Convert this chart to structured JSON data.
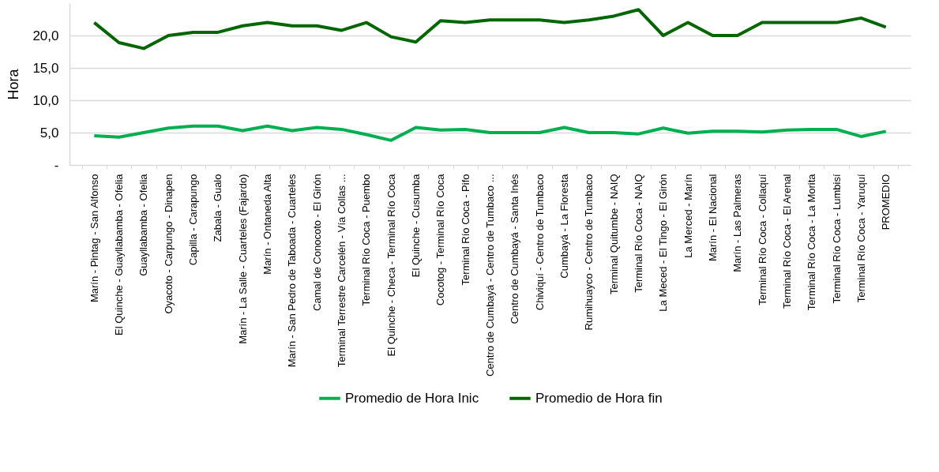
{
  "chart_data": {
    "type": "line",
    "ylabel": "Hora",
    "categories": [
      "Marín - Pintag - San Alfonso",
      "El Quinche - Guayllabamba - Ofelia",
      "Guayllabamba - Ofelia",
      "Oyacoto - Carpungo - Dinapen",
      "Capilla - Carapungo",
      "Zabala - Gualo",
      "Marín - La Salle - Cuarteles (Fajardo)",
      "Marín - Ontaneda Alta",
      "Marín - San Pedro de Taboada - Cuarteles",
      "Camal de Conocoto - El Girón",
      "Terminal Terrestre Carcelén -  Vía Collas ...",
      "Terminal Río Coca - Puembo",
      "El Quinche - Checa - Terminal Río Coca",
      "El Quinche - Cusumba",
      "Cocotog - Terminal Río Coca",
      "Terminal Río Coca - Pifo",
      "Centro de Cumbayá - Centro de Tumbaco ...",
      "Centro de Cumbayá - Santa Inés",
      "Chiviquí - Centro de Tumbaco",
      "Cumbayá - La Floresta",
      "Rumihuayco  - Centro de Tumbaco",
      "Terminal Quitumbe - NAIQ",
      "Terminal Río Coca - NAIQ",
      "La Meced - El Tingo - El Girón",
      "La Merced - Marín",
      "Marín - El Nacional",
      "Marín - Las Palmeras",
      "Terminal Río Coca - Collaquí",
      "Terminal Río Coca - El Arenal",
      "Terminal Río Coca - La Morita",
      "Terminal Río Coca - Lumbisí",
      "Terminal Río Coca - Yaruquí",
      "PROMEDIO"
    ],
    "series": [
      {
        "name": "Promedio de Hora Inic",
        "color": "#00b050",
        "values": [
          4.5,
          4.3,
          5,
          5.7,
          6,
          6,
          5.3,
          6,
          5.3,
          5.8,
          5.5,
          4.7,
          3.8,
          5.8,
          5.4,
          5.5,
          5,
          5,
          5,
          5.8,
          5,
          5,
          4.8,
          5.7,
          4.9,
          5.2,
          5.2,
          5.1,
          5.4,
          5.5,
          5.5,
          4.4,
          5.2
        ]
      },
      {
        "name": "Promedio de Hora fin",
        "color": "#006600",
        "values": [
          22,
          18.9,
          18,
          20,
          20.5,
          20.5,
          21.5,
          22,
          21.5,
          21.5,
          20.8,
          22,
          19.8,
          19,
          22.3,
          22,
          22.4,
          22.4,
          22.4,
          22,
          22.4,
          23,
          24,
          20,
          22,
          20,
          20,
          22,
          22,
          22,
          22,
          22.7,
          21.3
        ]
      }
    ],
    "ylim": [
      0,
      25
    ],
    "yticks": [
      {
        "value": 0,
        "label": "-"
      },
      {
        "value": 5,
        "label": "5,0"
      },
      {
        "value": 10,
        "label": "10,0"
      },
      {
        "value": 15,
        "label": "15,0"
      },
      {
        "value": 20,
        "label": "20,0"
      }
    ],
    "grid": "y",
    "legend": "bottom",
    "marker": "none",
    "line_style": "solid"
  }
}
